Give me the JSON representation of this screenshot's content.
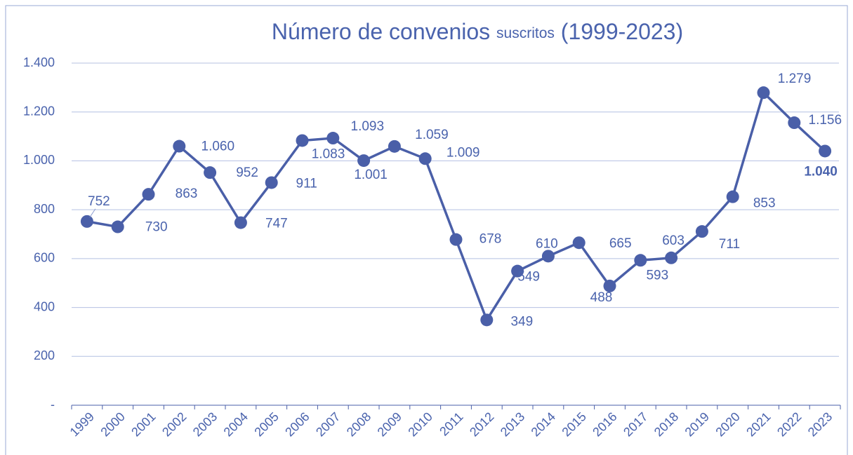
{
  "chart_data": {
    "type": "line",
    "title": [
      "Número de convenios",
      "suscritos",
      "(1999-2023)"
    ],
    "categories": [
      "1999",
      "2000",
      "2001",
      "2002",
      "2003",
      "2004",
      "2005",
      "2006",
      "2007",
      "2008",
      "2009",
      "2010",
      "2011",
      "2012",
      "2013",
      "2014",
      "2015",
      "2016",
      "2017",
      "2018",
      "2019",
      "2020",
      "2021",
      "2022",
      "2023"
    ],
    "series": [
      {
        "color": "#4a5fa8",
        "values": [
          752,
          730,
          863,
          1060,
          952,
          747,
          911,
          1083,
          1093,
          1001,
          1059,
          1009,
          678,
          349,
          549,
          610,
          665,
          488,
          593,
          603,
          711,
          853,
          1279,
          1156,
          1040
        ],
        "value_labels": [
          "752",
          "730",
          "863",
          "1.060",
          "952",
          "747",
          "911",
          "1.083",
          "1.093",
          "1.001",
          "1.059",
          "1.009",
          "678",
          "349",
          "549",
          "610",
          "665",
          "488",
          "593",
          "603",
          "711",
          "853",
          "1.279",
          "1.156",
          "1.040"
        ]
      }
    ],
    "ylim": [
      0,
      1400
    ],
    "yticks": [
      {
        "value": 0,
        "label": "-"
      },
      200,
      400,
      600,
      800,
      {
        "value": 1000,
        "label": "1.000"
      },
      {
        "value": 1200,
        "label": "1.200"
      },
      {
        "value": 1400,
        "label": "1.400"
      }
    ],
    "grid": true
  }
}
